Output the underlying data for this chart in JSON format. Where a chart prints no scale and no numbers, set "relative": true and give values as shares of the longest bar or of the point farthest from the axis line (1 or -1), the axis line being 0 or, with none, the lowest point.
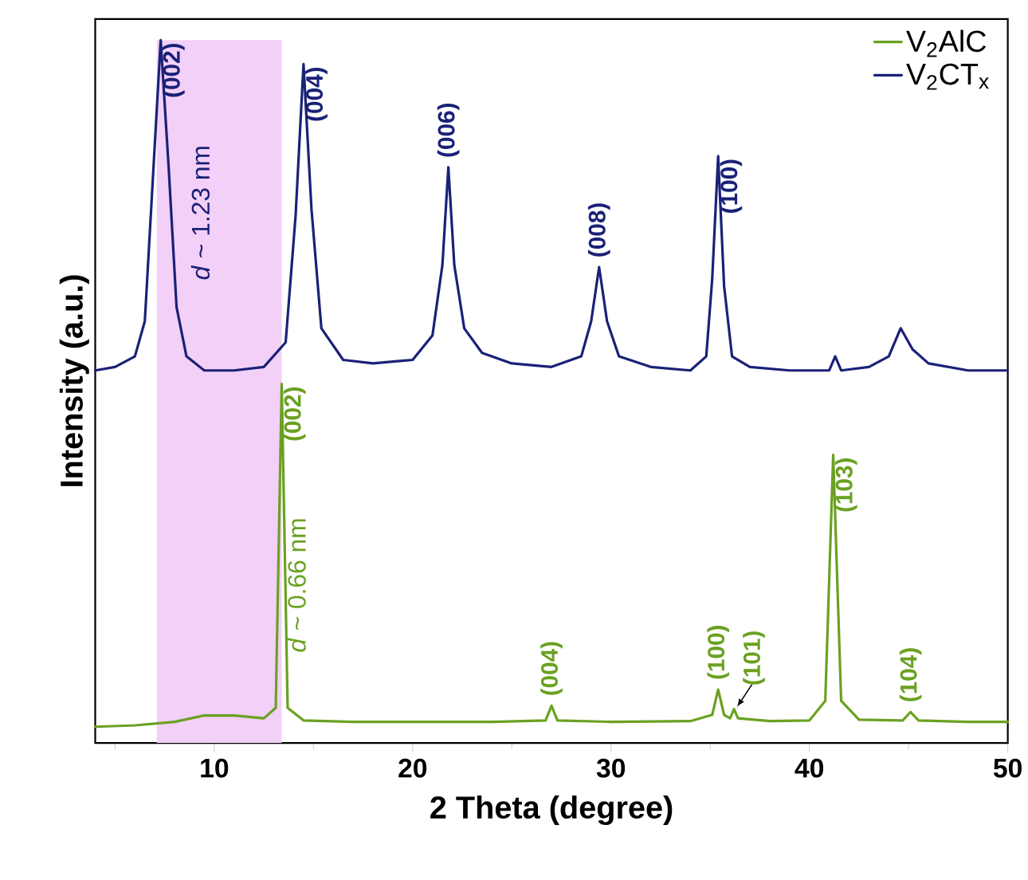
{
  "chart_data": {
    "type": "line",
    "relative": true,
    "xlabel": "2 Theta (degree)",
    "ylabel": "Intensity (a.u.)",
    "xlim": [
      4,
      50
    ],
    "xticks": [
      {
        "value": 5,
        "label": null
      },
      10,
      {
        "value": 15,
        "label": null
      },
      20,
      {
        "value": 25,
        "label": null
      },
      30,
      {
        "value": 35,
        "label": null
      },
      40,
      {
        "value": 45,
        "label": null
      },
      50
    ],
    "legend": "top right",
    "series": [
      {
        "name": "V$_{2}$AlC",
        "color": "#6aa121",
        "x": [
          4,
          6,
          8,
          9.5,
          11,
          12.5,
          13.1,
          13.4,
          13.7,
          14.5,
          17,
          20,
          24,
          26.7,
          27.0,
          27.3,
          30,
          34,
          35.1,
          35.4,
          35.7,
          36.0,
          36.2,
          36.4,
          38,
          40,
          40.8,
          41.2,
          41.6,
          42.5,
          44.7,
          45.1,
          45.5,
          48,
          50
        ],
        "values": [
          0.023,
          0.025,
          0.03,
          0.039,
          0.039,
          0.035,
          0.05,
          0.511,
          0.05,
          0.032,
          0.03,
          0.03,
          0.03,
          0.032,
          0.053,
          0.032,
          0.03,
          0.031,
          0.04,
          0.076,
          0.04,
          0.035,
          0.048,
          0.035,
          0.031,
          0.032,
          0.06,
          0.41,
          0.06,
          0.033,
          0.032,
          0.044,
          0.032,
          0.03,
          0.03
        ]
      },
      {
        "name": "V$_{2}$CT$_{x}$",
        "color": "#1a2177",
        "x": [
          4,
          5,
          6,
          6.5,
          6.9,
          7.3,
          7.7,
          8.1,
          8.6,
          9.5,
          11,
          12.5,
          13.6,
          14.1,
          14.5,
          14.9,
          15.4,
          16.5,
          18,
          20,
          21.0,
          21.5,
          21.8,
          22.1,
          22.6,
          23.5,
          25,
          27,
          28.5,
          29.0,
          29.4,
          29.8,
          30.4,
          32,
          34,
          34.8,
          35.1,
          35.4,
          35.7,
          36.1,
          37,
          39,
          41,
          41.3,
          41.6,
          43,
          44,
          44.6,
          45.2,
          46,
          48,
          50
        ],
        "values": [
          0.53,
          0.535,
          0.55,
          0.6,
          0.8,
          1.0,
          0.82,
          0.62,
          0.55,
          0.53,
          0.53,
          0.535,
          0.57,
          0.75,
          0.966,
          0.76,
          0.59,
          0.545,
          0.54,
          0.545,
          0.58,
          0.68,
          0.819,
          0.68,
          0.59,
          0.555,
          0.54,
          0.535,
          0.55,
          0.6,
          0.677,
          0.6,
          0.55,
          0.535,
          0.53,
          0.55,
          0.66,
          0.835,
          0.65,
          0.55,
          0.535,
          0.53,
          0.53,
          0.55,
          0.53,
          0.535,
          0.55,
          0.59,
          0.56,
          0.54,
          0.53,
          0.53
        ]
      }
    ],
    "bands": [
      {
        "axis": "x",
        "from": 7.1,
        "to": 13.4,
        "color": "#f3d0f7"
      }
    ],
    "annotations": [
      {
        "text": "(002)",
        "x": 7.3,
        "y": 1.0
      },
      {
        "text": "(004)",
        "x": 14.5,
        "y": 0.966
      },
      {
        "text": "(006)",
        "x": 21.8,
        "y": 0.819
      },
      {
        "text": "(008)",
        "x": 29.4,
        "y": 0.677
      },
      {
        "text": "(100)",
        "x": 35.4,
        "y": 0.835
      },
      {
        "text": "(002)",
        "x": 13.4,
        "y": 0.511
      },
      {
        "text": "(004)",
        "x": 27.0,
        "y": 0.053
      },
      {
        "text": "(100)",
        "x": 35.4,
        "y": 0.076
      },
      {
        "text": "(101)",
        "x": 36.2,
        "y": 0.048
      },
      {
        "text": "(103)",
        "x": 41.2,
        "y": 0.41
      },
      {
        "text": "(104)",
        "x": 45.1,
        "y": 0.044
      },
      "*d* ~ 1.23 nm",
      "*d* ~ 0.66 nm"
    ]
  }
}
